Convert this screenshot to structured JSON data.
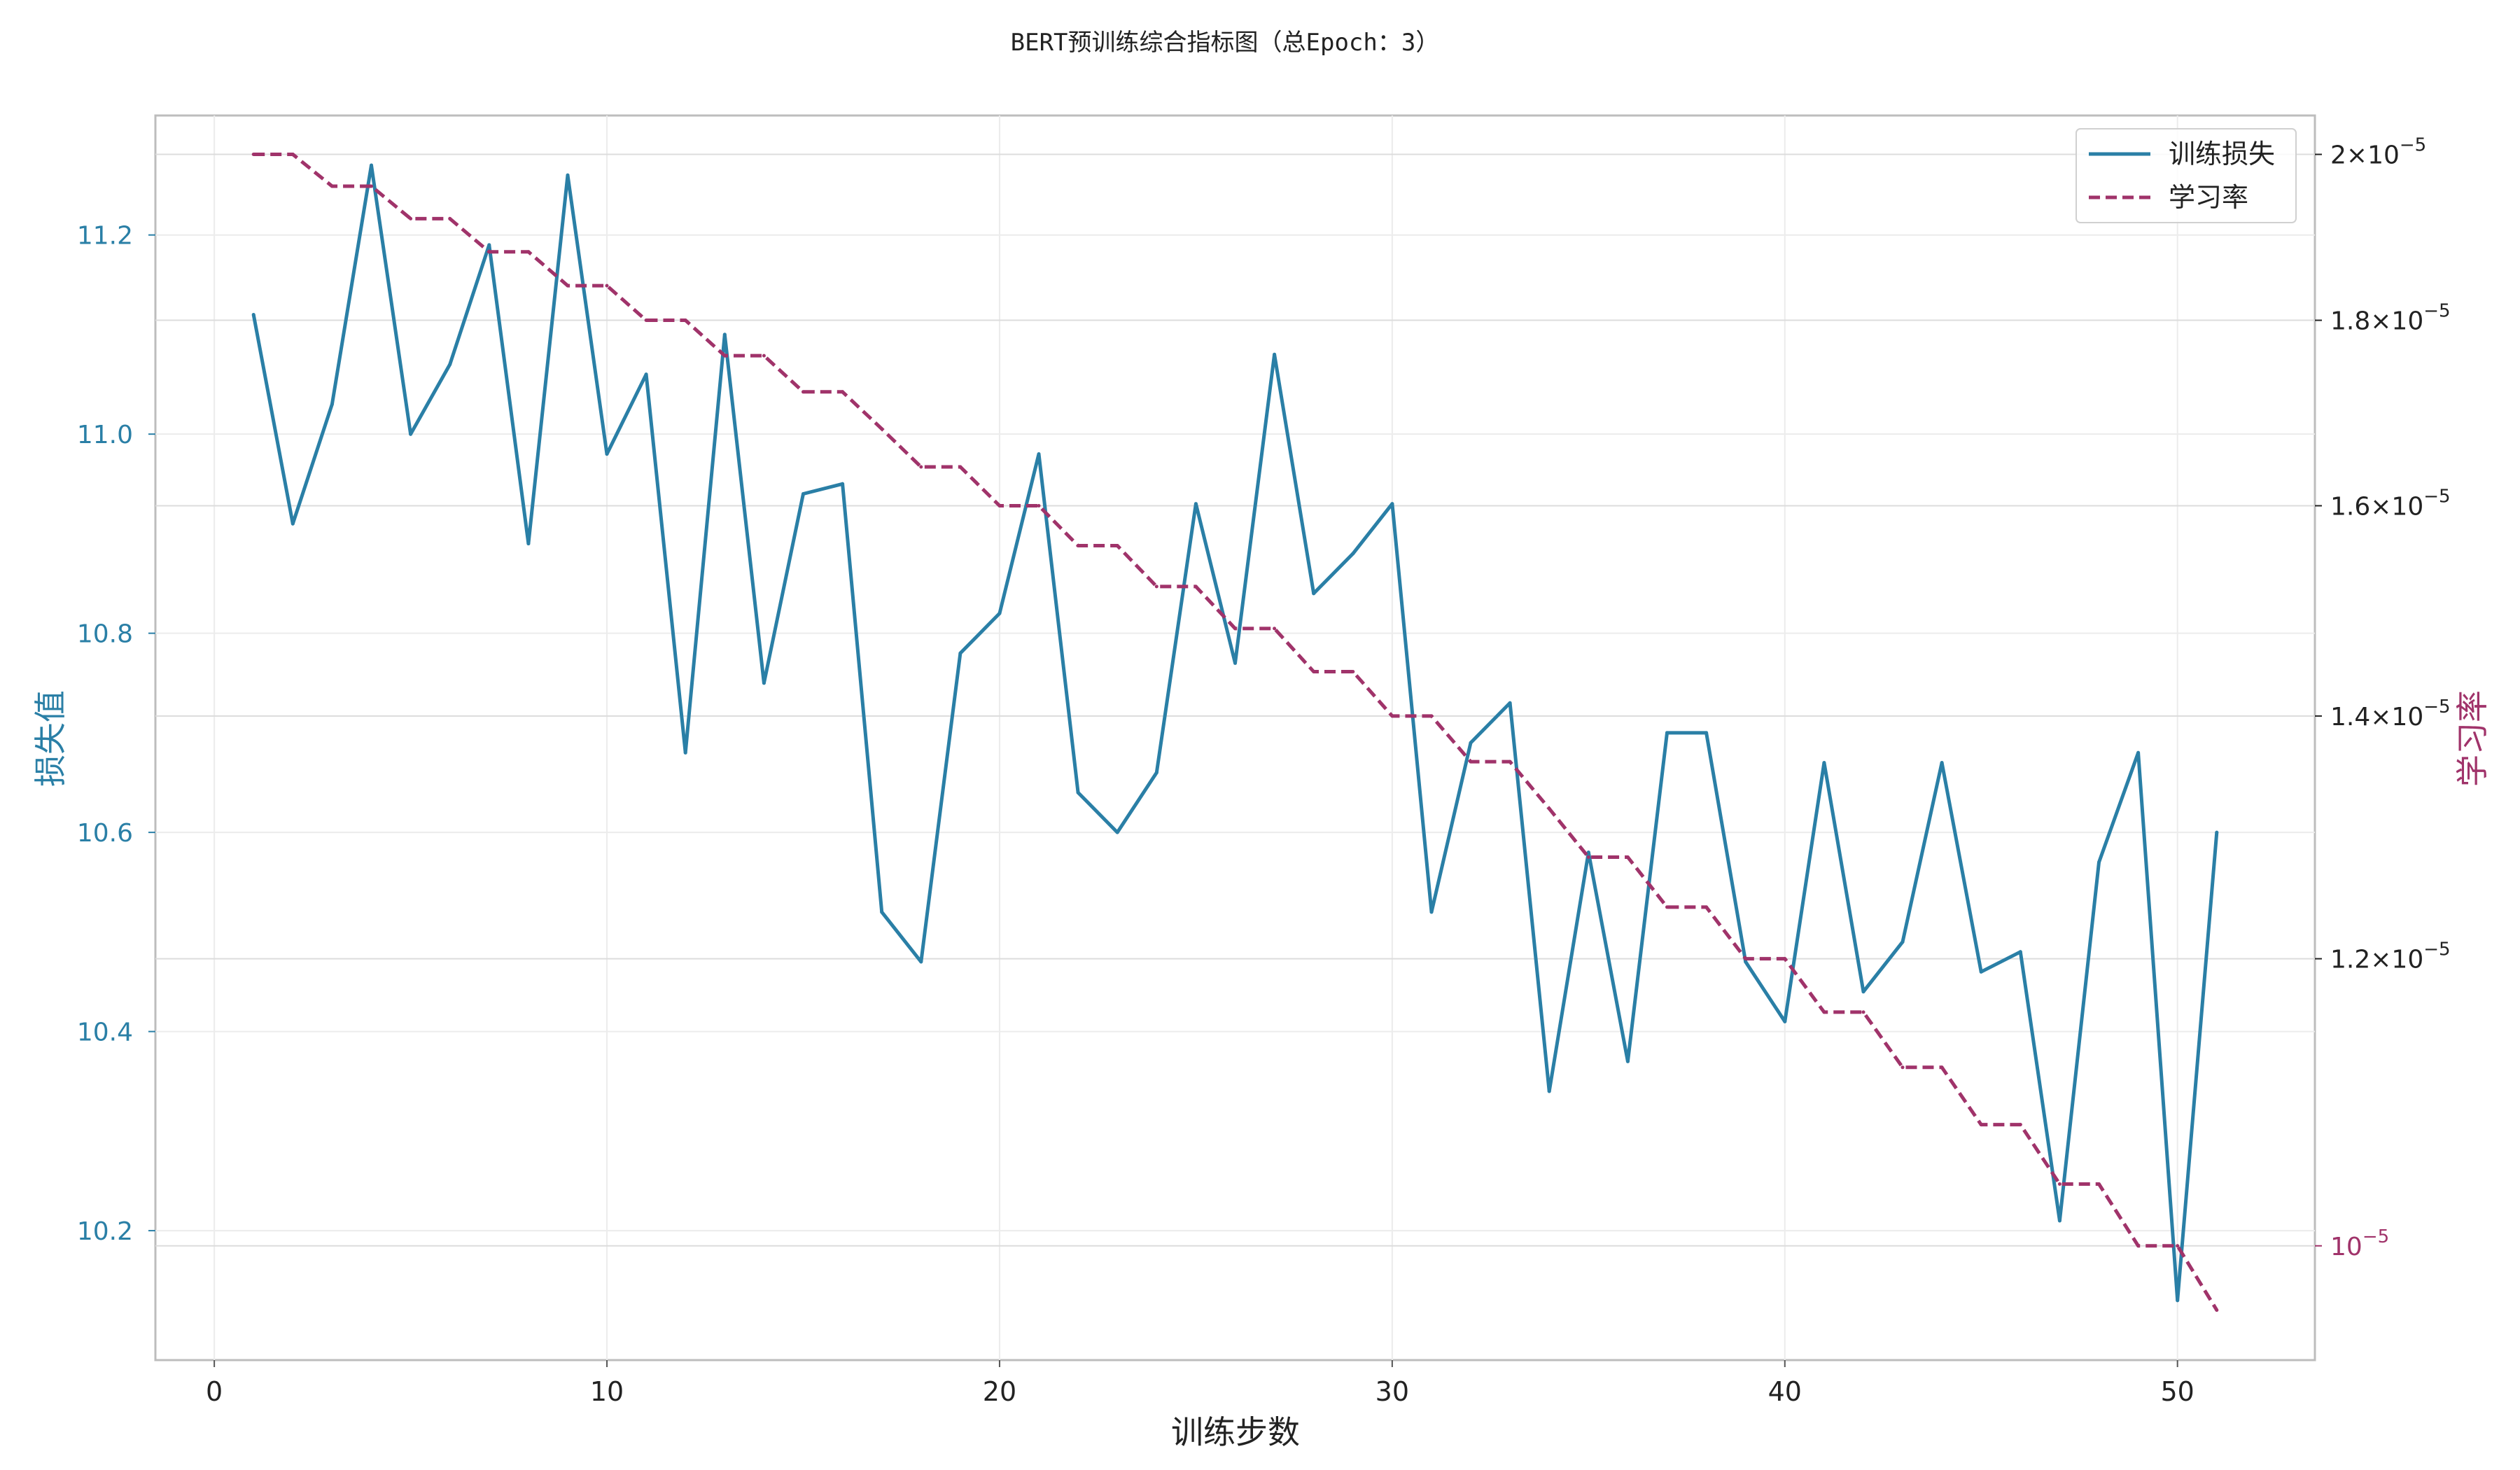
{
  "chart_data": {
    "type": "line",
    "title": "BERT预训练综合指标图（总Epoch：3）",
    "xlabel": "训练步数",
    "ylabel_left": "损失值",
    "ylabel_right": "学习率",
    "xlim": [
      -1.5,
      53.5
    ],
    "ylim_left": [
      10.07,
      11.32
    ],
    "ylim_right": [
      9.3e-06,
      2.05e-05
    ],
    "y_right_scale": "log",
    "x_ticks": [
      0,
      10,
      20,
      30,
      40,
      50
    ],
    "y_left_ticks": [
      10.2,
      10.4,
      10.6,
      10.8,
      11.0,
      11.2
    ],
    "y_right_ticks": [
      {
        "value": 2e-05,
        "base": "2×10",
        "exp": "−5"
      },
      {
        "value": 1.8e-05,
        "base": "1.8×10",
        "exp": "−5"
      },
      {
        "value": 1.6e-05,
        "base": "1.6×10",
        "exp": "−5"
      },
      {
        "value": 1.4e-05,
        "base": "1.4×10",
        "exp": "−5"
      },
      {
        "value": 1.2e-05,
        "base": "1.2×10",
        "exp": "−5"
      },
      {
        "value": 1e-05,
        "base": "10",
        "exp": "−5"
      }
    ],
    "grid": true,
    "legend_position": "top-right",
    "series": [
      {
        "name": "训练损失",
        "axis": "left",
        "style": "solid",
        "color": "#2a7fa6",
        "x": [
          1,
          2,
          3,
          4,
          5,
          6,
          7,
          8,
          9,
          10,
          11,
          12,
          13,
          14,
          15,
          16,
          17,
          18,
          19,
          20,
          21,
          22,
          23,
          24,
          25,
          26,
          27,
          28,
          29,
          30,
          31,
          32,
          33,
          34,
          35,
          36,
          37,
          38,
          39,
          40,
          41,
          42,
          43,
          44,
          45,
          46,
          47,
          48,
          49,
          50,
          51
        ],
        "values": [
          11.12,
          10.91,
          11.03,
          11.27,
          11.0,
          11.07,
          11.19,
          10.89,
          11.26,
          10.98,
          11.06,
          10.68,
          11.1,
          10.75,
          10.94,
          10.95,
          10.52,
          10.47,
          10.78,
          10.82,
          10.98,
          10.64,
          10.6,
          10.66,
          10.93,
          10.77,
          11.08,
          10.84,
          10.88,
          10.93,
          10.52,
          10.69,
          10.73,
          10.34,
          10.58,
          10.37,
          10.7,
          10.7,
          10.47,
          10.41,
          10.67,
          10.44,
          10.49,
          10.67,
          10.46,
          10.48,
          10.21,
          10.57,
          10.68,
          10.13,
          10.6
        ]
      },
      {
        "name": "学习率",
        "axis": "right",
        "style": "dashed",
        "color": "#a0336a",
        "x": [
          1,
          2,
          3,
          4,
          5,
          6,
          7,
          8,
          9,
          10,
          11,
          12,
          13,
          14,
          15,
          16,
          17,
          18,
          19,
          20,
          21,
          22,
          23,
          24,
          25,
          26,
          27,
          28,
          29,
          30,
          31,
          32,
          33,
          34,
          35,
          36,
          37,
          38,
          39,
          40,
          41,
          42,
          43,
          44,
          45,
          46,
          47,
          48,
          49,
          50,
          51
        ],
        "values": [
          2e-05,
          2e-05,
          1.96e-05,
          1.96e-05,
          1.92e-05,
          1.92e-05,
          1.88e-05,
          1.88e-05,
          1.84e-05,
          1.84e-05,
          1.8e-05,
          1.8e-05,
          1.76e-05,
          1.76e-05,
          1.72e-05,
          1.72e-05,
          1.68e-05,
          1.64e-05,
          1.64e-05,
          1.6e-05,
          1.6e-05,
          1.56e-05,
          1.56e-05,
          1.52e-05,
          1.52e-05,
          1.48e-05,
          1.48e-05,
          1.44e-05,
          1.44e-05,
          1.4e-05,
          1.4e-05,
          1.36e-05,
          1.36e-05,
          1.32e-05,
          1.28e-05,
          1.28e-05,
          1.24e-05,
          1.24e-05,
          1.2e-05,
          1.2e-05,
          1.16e-05,
          1.16e-05,
          1.12e-05,
          1.12e-05,
          1.08e-05,
          1.08e-05,
          1.04e-05,
          1.04e-05,
          1e-05,
          1e-05,
          9.6e-06
        ]
      }
    ]
  }
}
